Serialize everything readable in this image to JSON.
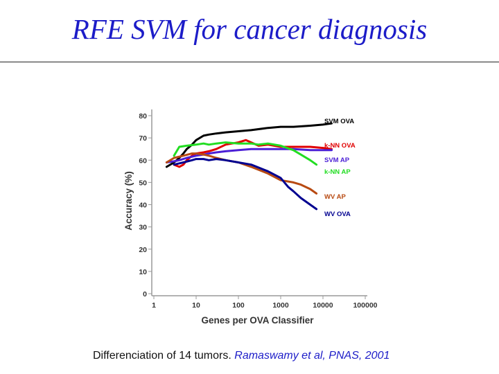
{
  "slide": {
    "title": "RFE SVM for cancer diagnosis",
    "caption_text": "Differenciation of 14 tumors.",
    "caption_ref": "Ramaswamy et al, PNAS, 2001"
  },
  "chart_data": {
    "type": "line",
    "title": "",
    "xlabel": "Genes per OVA Classifier",
    "ylabel": "Accuracy (%)",
    "xscale": "log",
    "xlim": [
      1,
      100000
    ],
    "ylim": [
      0,
      80
    ],
    "xticks": [
      1,
      10,
      100,
      1000,
      10000,
      100000
    ],
    "xtick_labels": [
      "1",
      "10",
      "100",
      "1000",
      "10000",
      "100000"
    ],
    "yticks": [
      0,
      10,
      20,
      30,
      40,
      50,
      60,
      70,
      80
    ],
    "ytick_labels": [
      "0",
      "10",
      "20",
      "30",
      "40",
      "50",
      "60",
      "70",
      "80"
    ],
    "grid": false,
    "legend": "right, labels at line ends",
    "series": [
      {
        "name": "SVM OVA",
        "color": "#000000",
        "x": [
          2,
          3,
          4,
          5,
          6,
          8,
          10,
          15,
          20,
          30,
          50,
          100,
          200,
          500,
          1000,
          2000,
          5000,
          10000,
          16000
        ],
        "y": [
          57,
          59,
          61,
          63,
          65,
          67,
          69,
          71,
          71.5,
          72,
          72.5,
          73,
          73.5,
          74.5,
          75,
          75,
          75.5,
          76,
          76.5
        ]
      },
      {
        "name": "k-NN OVA",
        "color": "#e00000",
        "x": [
          3,
          4,
          5,
          6,
          8,
          10,
          15,
          20,
          30,
          50,
          70,
          100,
          150,
          200,
          300,
          500,
          1000,
          2000,
          5000,
          10000,
          16000
        ],
        "y": [
          58,
          57,
          58,
          60,
          62,
          63,
          63.5,
          64,
          65,
          67,
          67.5,
          68,
          69,
          68,
          66.5,
          67,
          66,
          66,
          66,
          65.5,
          65
        ]
      },
      {
        "name": "SVM AP",
        "color": "#4b1fd6",
        "x": [
          2,
          3,
          4,
          6,
          10,
          15,
          20,
          30,
          50,
          100,
          200,
          500,
          1000,
          2000,
          5000,
          10000,
          16000
        ],
        "y": [
          59,
          59.5,
          60,
          61,
          62,
          62.5,
          63,
          63.5,
          64,
          64.5,
          65,
          65,
          65,
          65,
          64.5,
          64.5,
          64.5
        ]
      },
      {
        "name": "k-NN AP",
        "color": "#22dd22",
        "x": [
          3,
          4,
          6,
          10,
          15,
          20,
          30,
          50,
          100,
          200,
          300,
          500,
          1000,
          2000,
          3000,
          5000,
          7000
        ],
        "y": [
          62,
          66,
          66.5,
          67,
          67.5,
          67,
          67.5,
          68,
          67.5,
          67.5,
          67,
          67.5,
          66.5,
          64.5,
          62.5,
          60,
          58
        ]
      },
      {
        "name": "WV AP",
        "color": "#b84a12",
        "x": [
          2,
          3,
          5,
          8,
          10,
          15,
          20,
          30,
          50,
          100,
          200,
          500,
          1000,
          2000,
          3000,
          5000,
          7000
        ],
        "y": [
          59,
          61,
          62,
          63,
          63,
          62.5,
          62,
          61,
          60,
          59,
          57,
          54,
          51,
          50,
          49,
          47,
          45
        ]
      },
      {
        "name": "WV OVA",
        "color": "#000090",
        "x": [
          3,
          5,
          8,
          10,
          15,
          20,
          30,
          50,
          100,
          200,
          500,
          1000,
          1500,
          2000,
          3000,
          5000,
          7000
        ],
        "y": [
          58,
          59,
          60,
          60.5,
          60.5,
          60,
          60.5,
          60,
          59,
          58,
          55,
          52,
          48,
          46,
          43,
          40,
          38
        ]
      }
    ]
  }
}
